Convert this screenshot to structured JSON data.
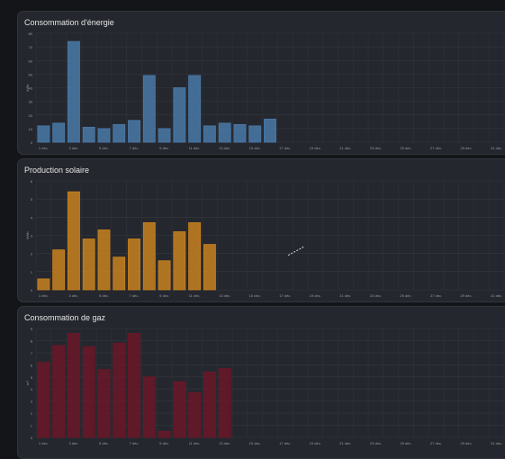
{
  "cards": [
    {
      "title": "Consommation d'énergie"
    },
    {
      "title": "Production solaire"
    },
    {
      "title": "Consommation de gaz"
    }
  ],
  "chart_data": [
    {
      "type": "bar",
      "title": "Consommation d'énergie",
      "ylabel": "kWh",
      "color": "#4a7aa8",
      "ylim": [
        0,
        80
      ],
      "yticks": [
        0,
        10,
        20,
        30,
        40,
        50,
        60,
        70,
        80
      ],
      "xticks": [
        "1 déc.",
        "3 déc.",
        "5 déc.",
        "7 déc.",
        "9 déc.",
        "11 déc.",
        "13 déc.",
        "15 déc.",
        "17 déc.",
        "19 déc.",
        "21 déc.",
        "23 déc.",
        "25 déc.",
        "27 déc.",
        "29 déc.",
        "31 déc."
      ],
      "values": [
        12,
        14,
        74,
        11,
        10,
        13,
        16,
        49,
        10,
        40,
        49,
        12,
        14,
        13,
        12,
        17
      ]
    },
    {
      "type": "bar",
      "title": "Production solaire",
      "ylabel": "kWh",
      "color": "#c8821e",
      "ylim": [
        0,
        6
      ],
      "yticks": [
        0,
        1,
        2,
        3,
        4,
        5,
        6
      ],
      "xticks": [
        "1 déc.",
        "3 déc.",
        "5 déc.",
        "7 déc.",
        "9 déc.",
        "11 déc.",
        "13 déc.",
        "15 déc.",
        "17 déc.",
        "19 déc.",
        "21 déc.",
        "23 déc.",
        "25 déc.",
        "27 déc.",
        "29 déc.",
        "31 déc."
      ],
      "values": [
        0.6,
        2.2,
        5.4,
        2.8,
        3.3,
        1.8,
        2.8,
        3.7,
        1.6,
        3.2,
        3.7,
        2.5
      ],
      "dashed_segment": {
        "x": [
          17.2,
          18.3
        ],
        "y": [
          1.9,
          2.4
        ]
      }
    },
    {
      "type": "bar",
      "title": "Consommation de gaz",
      "ylabel": "m³",
      "color": "#6a1828",
      "ylim": [
        0,
        9
      ],
      "yticks": [
        0,
        1,
        2,
        3,
        4,
        5,
        6,
        7,
        8,
        9
      ],
      "xticks": [
        "1 déc.",
        "3 déc.",
        "5 déc.",
        "7 déc.",
        "9 déc.",
        "11 déc.",
        "13 déc.",
        "15 déc.",
        "17 déc.",
        "19 déc.",
        "21 déc.",
        "23 déc.",
        "25 déc.",
        "27 déc.",
        "29 déc.",
        "31 déc."
      ],
      "values": [
        6.2,
        7.6,
        8.6,
        7.5,
        5.6,
        7.8,
        8.6,
        5.0,
        0.5,
        4.6,
        3.7,
        5.4,
        5.7
      ]
    }
  ]
}
